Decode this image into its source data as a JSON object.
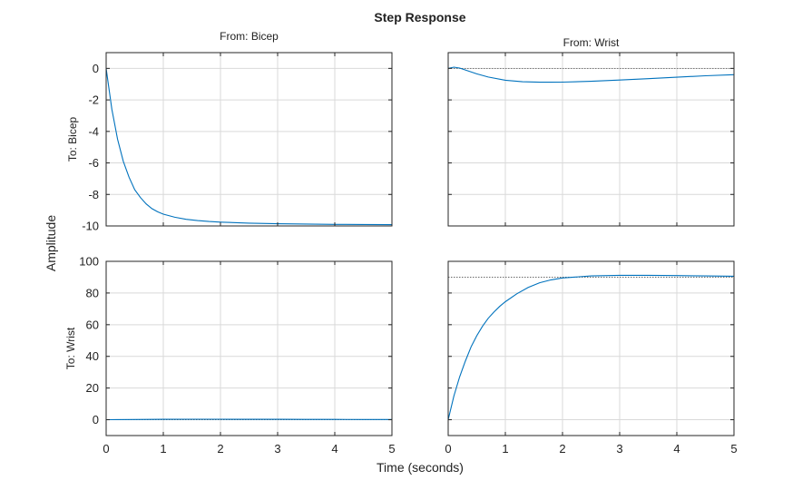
{
  "figure": {
    "title": "Step Response",
    "xlabel": "Time (seconds)",
    "ylabel": "Amplitude"
  },
  "colors": {
    "series": "#0072BD",
    "grid": "#d9d9d9",
    "steady_state": "#555555",
    "axes": "#262626"
  },
  "chart_data": [
    {
      "type": "line",
      "title": "From: Bicep",
      "ylabel": "To: Bicep",
      "xlim": [
        0,
        5
      ],
      "ylim": [
        -10,
        1
      ],
      "xticks": [
        0,
        1,
        2,
        3,
        4,
        5
      ],
      "yticks": [
        0,
        -2,
        -4,
        -6,
        -8,
        -10
      ],
      "grid": true,
      "show_xticklabels": false,
      "show_yticklabels": true,
      "steady_state": -10,
      "series": [
        {
          "x": [
            0,
            0.1,
            0.2,
            0.3,
            0.4,
            0.5,
            0.6,
            0.7,
            0.8,
            0.9,
            1.0,
            1.2,
            1.4,
            1.6,
            1.8,
            2.0,
            2.5,
            3.0,
            3.5,
            4.0,
            4.5,
            5.0
          ],
          "y": [
            0,
            -2.6,
            -4.5,
            -5.9,
            -6.9,
            -7.7,
            -8.2,
            -8.6,
            -8.9,
            -9.1,
            -9.25,
            -9.45,
            -9.58,
            -9.66,
            -9.72,
            -9.76,
            -9.82,
            -9.86,
            -9.88,
            -9.9,
            -9.91,
            -9.92
          ]
        }
      ]
    },
    {
      "type": "line",
      "title": "From: Wrist",
      "ylabel": "",
      "xlim": [
        0,
        5
      ],
      "ylim": [
        -10,
        1
      ],
      "xticks": [
        0,
        1,
        2,
        3,
        4,
        5
      ],
      "yticks": [
        0,
        -2,
        -4,
        -6,
        -8,
        -10
      ],
      "grid": true,
      "show_xticklabels": false,
      "show_yticklabels": false,
      "steady_state": 0,
      "series": [
        {
          "x": [
            0,
            0.1,
            0.2,
            0.3,
            0.5,
            0.7,
            1.0,
            1.3,
            1.6,
            1.8,
            2.0,
            2.5,
            3.0,
            3.5,
            4.0,
            4.5,
            5.0
          ],
          "y": [
            0,
            0.08,
            0.02,
            -0.1,
            -0.35,
            -0.55,
            -0.75,
            -0.85,
            -0.88,
            -0.88,
            -0.87,
            -0.82,
            -0.74,
            -0.65,
            -0.56,
            -0.47,
            -0.4
          ]
        }
      ]
    },
    {
      "type": "line",
      "title": "",
      "ylabel": "To: Wrist",
      "xlim": [
        0,
        5
      ],
      "ylim": [
        -10,
        100
      ],
      "xticks": [
        0,
        1,
        2,
        3,
        4,
        5
      ],
      "yticks": [
        0,
        20,
        40,
        60,
        80,
        100
      ],
      "grid": true,
      "show_xticklabels": true,
      "show_yticklabels": true,
      "steady_state": 0,
      "series": [
        {
          "x": [
            0,
            0.5,
            1.0,
            1.5,
            2.0,
            2.5,
            3.0,
            3.5,
            4.0,
            4.5,
            5.0
          ],
          "y": [
            0,
            0.15,
            0.25,
            0.3,
            0.3,
            0.28,
            0.25,
            0.22,
            0.18,
            0.15,
            0.12
          ]
        }
      ]
    },
    {
      "type": "line",
      "title": "",
      "ylabel": "",
      "xlim": [
        0,
        5
      ],
      "ylim": [
        -10,
        100
      ],
      "xticks": [
        0,
        1,
        2,
        3,
        4,
        5
      ],
      "yticks": [
        0,
        20,
        40,
        60,
        80,
        100
      ],
      "grid": true,
      "show_xticklabels": true,
      "show_yticklabels": false,
      "steady_state": 90,
      "series": [
        {
          "x": [
            0,
            0.1,
            0.2,
            0.3,
            0.4,
            0.5,
            0.6,
            0.7,
            0.8,
            0.9,
            1.0,
            1.2,
            1.4,
            1.6,
            1.8,
            2.0,
            2.5,
            3.0,
            3.5,
            4.0,
            4.5,
            5.0
          ],
          "y": [
            0,
            15,
            27,
            37,
            46,
            53,
            59,
            64,
            68,
            71.5,
            74.5,
            79.5,
            83.5,
            86.5,
            88.3,
            89.5,
            90.8,
            91.2,
            91.2,
            91.0,
            90.8,
            90.6
          ]
        }
      ]
    }
  ]
}
